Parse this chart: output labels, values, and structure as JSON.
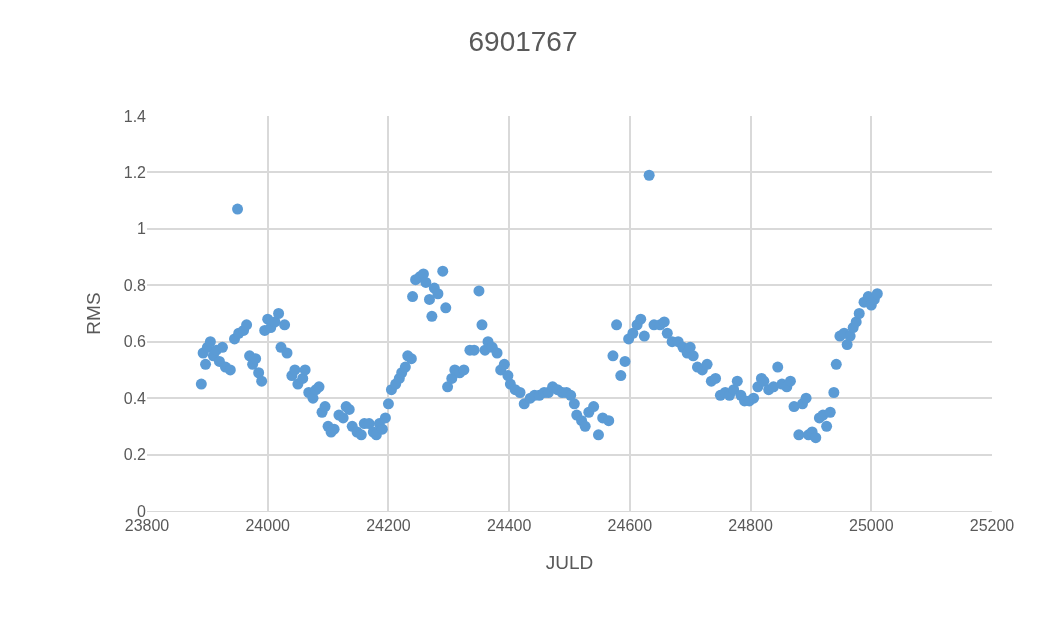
{
  "chart_data": {
    "type": "scatter",
    "title": "6901767",
    "xlabel": "JULD",
    "ylabel": "RMS",
    "xlim": [
      23800,
      25200
    ],
    "xticks": [
      23800,
      24000,
      24200,
      24400,
      24600,
      24800,
      25000,
      25200
    ],
    "ylim": [
      0,
      1.4
    ],
    "yticks": [
      0,
      0.2,
      0.4,
      0.6,
      0.8,
      1,
      1.2,
      1.4
    ],
    "grid": true,
    "marker": "circle",
    "series": [
      {
        "color": "#5b9bd5",
        "x": [
          23890,
          23893,
          23897,
          23900,
          23905,
          23910,
          23915,
          23920,
          23925,
          23930,
          23938,
          23945,
          23950,
          23952,
          23960,
          23965,
          23970,
          23975,
          23980,
          23985,
          23990,
          23995,
          24000,
          24005,
          24012,
          24018,
          24022,
          24028,
          24032,
          24040,
          24045,
          24050,
          24058,
          24062,
          24068,
          24075,
          24080,
          24085,
          24090,
          24095,
          24100,
          24105,
          24110,
          24118,
          24125,
          24130,
          24135,
          24140,
          24148,
          24155,
          24160,
          24168,
          24175,
          24180,
          24185,
          24190,
          24195,
          24200,
          24205,
          24212,
          24218,
          24222,
          24228,
          24232,
          24238,
          24240,
          24245,
          24252,
          24258,
          24262,
          24268,
          24272,
          24276,
          24282,
          24290,
          24295,
          24298,
          24305,
          24310,
          24318,
          24325,
          24335,
          24342,
          24350,
          24355,
          24360,
          24365,
          24372,
          24380,
          24386,
          24392,
          24398,
          24402,
          24410,
          24418,
          24425,
          24435,
          24442,
          24450,
          24458,
          24465,
          24472,
          24480,
          24488,
          24495,
          24502,
          24508,
          24512,
          24520,
          24526,
          24532,
          24540,
          24548,
          24555,
          24565,
          24572,
          24578,
          24585,
          24592,
          24598,
          24605,
          24612,
          24618,
          24624,
          24632,
          24640,
          24650,
          24657,
          24662,
          24670,
          24680,
          24688,
          24695,
          24700,
          24705,
          24712,
          24720,
          24728,
          24735,
          24742,
          24750,
          24758,
          24765,
          24772,
          24778,
          24784,
          24790,
          24798,
          24805,
          24812,
          24818,
          24822,
          24830,
          24838,
          24845,
          24852,
          24860,
          24866,
          24872,
          24880,
          24886,
          24892,
          24896,
          24902,
          24908,
          24914,
          24920,
          24926,
          24932,
          24938,
          24942,
          24948,
          24955,
          24960,
          24965,
          24970,
          24975,
          24980,
          24988,
          24995,
          25000,
          25005,
          25010
        ],
        "values": [
          0.45,
          0.56,
          0.52,
          0.58,
          0.6,
          0.55,
          0.57,
          0.53,
          0.58,
          0.51,
          0.5,
          0.61,
          1.07,
          0.63,
          0.64,
          0.66,
          0.55,
          0.52,
          0.54,
          0.49,
          0.46,
          0.64,
          0.68,
          0.65,
          0.67,
          0.7,
          0.58,
          0.66,
          0.56,
          0.48,
          0.5,
          0.45,
          0.47,
          0.5,
          0.42,
          0.4,
          0.43,
          0.44,
          0.35,
          0.37,
          0.3,
          0.28,
          0.29,
          0.34,
          0.33,
          0.37,
          0.36,
          0.3,
          0.28,
          0.27,
          0.31,
          0.31,
          0.28,
          0.27,
          0.31,
          0.29,
          0.33,
          0.38,
          0.43,
          0.45,
          0.47,
          0.49,
          0.51,
          0.55,
          0.54,
          0.76,
          0.82,
          0.83,
          0.84,
          0.81,
          0.75,
          0.69,
          0.79,
          0.77,
          0.85,
          0.72,
          0.44,
          0.47,
          0.5,
          0.49,
          0.5,
          0.57,
          0.57,
          0.78,
          0.66,
          0.57,
          0.6,
          0.58,
          0.56,
          0.5,
          0.52,
          0.48,
          0.45,
          0.43,
          0.42,
          0.38,
          0.4,
          0.41,
          0.41,
          0.42,
          0.42,
          0.44,
          0.43,
          0.42,
          0.42,
          0.41,
          0.38,
          0.34,
          0.32,
          0.3,
          0.35,
          0.37,
          0.27,
          0.33,
          0.32,
          0.55,
          0.66,
          0.48,
          0.53,
          0.61,
          0.63,
          0.66,
          0.68,
          0.62,
          1.19,
          0.66,
          0.66,
          0.67,
          0.63,
          0.6,
          0.6,
          0.58,
          0.56,
          0.58,
          0.55,
          0.51,
          0.5,
          0.52,
          0.46,
          0.47,
          0.41,
          0.42,
          0.41,
          0.43,
          0.46,
          0.41,
          0.39,
          0.39,
          0.4,
          0.44,
          0.47,
          0.46,
          0.43,
          0.44,
          0.51,
          0.45,
          0.44,
          0.46,
          0.37,
          0.27,
          0.38,
          0.4,
          0.27,
          0.28,
          0.26,
          0.33,
          0.34,
          0.3,
          0.35,
          0.42,
          0.52,
          0.62,
          0.63,
          0.59,
          0.62,
          0.65,
          0.67,
          0.7,
          0.74,
          0.76,
          0.73,
          0.75,
          0.77
        ]
      }
    ]
  }
}
